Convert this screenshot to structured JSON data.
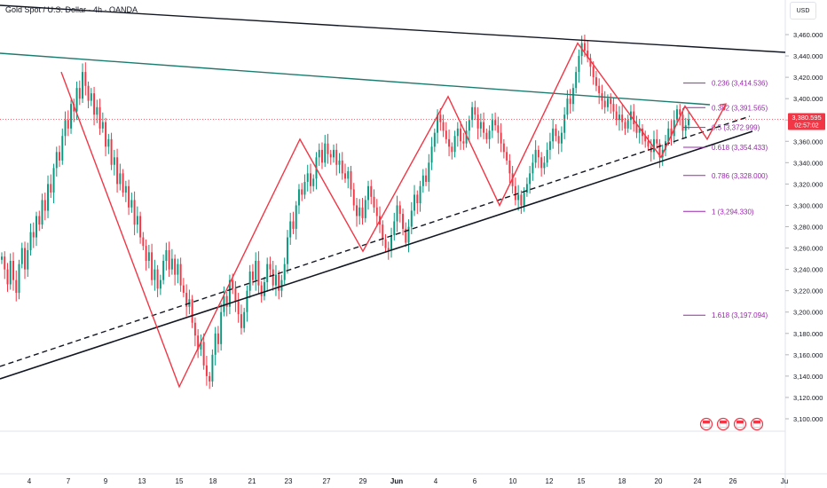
{
  "header": {
    "title": "Gold Spot / U.S. Dollar · 4h · OANDA",
    "currency": "USD"
  },
  "colors": {
    "bull": "#089981",
    "bear": "#f23645",
    "zigzag": "#f23645",
    "channel_top": "#131722",
    "teal_line": "#1b7b6e",
    "support": "#131722",
    "fib": "#9c27b0",
    "price_tag": "#f23645"
  },
  "price_badge": {
    "price": "3,380.595",
    "countdown": "02:57:02"
  },
  "chart_data": {
    "type": "candlestick",
    "symbol": "Gold Spot / U.S. Dollar",
    "timeframe": "4h",
    "y_axis": {
      "ticks": [
        "3,460.000",
        "3,440.000",
        "3,420.000",
        "3,400.000",
        "3,380.000",
        "3,360.000",
        "3,340.000",
        "3,320.000",
        "3,300.000",
        "3,280.000",
        "3,260.000",
        "3,240.000",
        "3,220.000",
        "3,200.000",
        "3,180.000",
        "3,160.000",
        "3,140.000",
        "3,120.000",
        "3,100.000"
      ],
      "range": [
        3085,
        3475
      ]
    },
    "x_axis": {
      "ticks": [
        "4",
        "7",
        "9",
        "13",
        "15",
        "18",
        "21",
        "23",
        "27",
        "29",
        "Jun",
        "4",
        "6",
        "10",
        "12",
        "15",
        "18",
        "20",
        "24",
        "26",
        "Ju"
      ]
    },
    "last_price": 3380.595,
    "fib_levels": [
      {
        "label": "0.236 (3,414.536)",
        "value": 3414.536
      },
      {
        "label": "0.382 (3,391.565)",
        "value": 3391.565
      },
      {
        "label": "0.5 (3,372.999)",
        "value": 3372.999
      },
      {
        "label": "0.618 (3,354.433)",
        "value": 3354.433
      },
      {
        "label": "0.786 (3,328.000)",
        "value": 3328.0
      },
      {
        "label": "1 (3,294.330)",
        "value": 3294.33
      },
      {
        "label": "1.618 (3,197.094)",
        "value": 3197.094
      }
    ],
    "zigzag_points": [
      {
        "x": "7",
        "y": 3425
      },
      {
        "x": "15",
        "y": 3130
      },
      {
        "x": "23",
        "y": 3362
      },
      {
        "x": "29",
        "y": 3257
      },
      {
        "x": "4",
        "y": 3402
      },
      {
        "x": "10",
        "y": 3300
      },
      {
        "x": "15",
        "y": 3452
      },
      {
        "x": "20",
        "y": 3345
      },
      {
        "x": "23",
        "y": 3393
      },
      {
        "x": "24",
        "y": 3362
      },
      {
        "x": "26",
        "y": 3395
      }
    ],
    "trendlines": [
      {
        "name": "channel top",
        "points": [
          [
            3495,
            "start"
          ],
          [
            3442,
            "end"
          ]
        ]
      },
      {
        "name": "mid line",
        "points": [
          [
            3430,
            "start"
          ],
          [
            3393,
            "end"
          ]
        ]
      }
    ],
    "candles": [
      3252,
      3240,
      3226,
      3248,
      3230,
      3218,
      3245,
      3260,
      3240,
      3258,
      3275,
      3270,
      3290,
      3282,
      3305,
      3295,
      3320,
      3312,
      3335,
      3350,
      3342,
      3365,
      3380,
      3372,
      3395,
      3388,
      3410,
      3400,
      3425,
      3412,
      3398,
      3405,
      3385,
      3392,
      3372,
      3378,
      3355,
      3362,
      3338,
      3345,
      3320,
      3330,
      3312,
      3318,
      3298,
      3305,
      3282,
      3290,
      3270,
      3262,
      3248,
      3256,
      3230,
      3240,
      3222,
      3230,
      3248,
      3258,
      3240,
      3250,
      3235,
      3245,
      3225,
      3218,
      3205,
      3212,
      3190,
      3178,
      3165,
      3172,
      3150,
      3140,
      3135,
      3160,
      3180,
      3170,
      3200,
      3215,
      3205,
      3230,
      3222,
      3210,
      3198,
      3185,
      3200,
      3220,
      3238,
      3230,
      3248,
      3225,
      3215,
      3228,
      3245,
      3240,
      3225,
      3235,
      3220,
      3230,
      3245,
      3270,
      3285,
      3278,
      3300,
      3315,
      3310,
      3322,
      3330,
      3318,
      3325,
      3345,
      3352,
      3340,
      3358,
      3348,
      3345,
      3352,
      3338,
      3342,
      3330,
      3325,
      3332,
      3315,
      3300,
      3290,
      3298,
      3288,
      3305,
      3318,
      3308,
      3298,
      3290,
      3282,
      3268,
      3260,
      3258,
      3272,
      3285,
      3300,
      3292,
      3278,
      3265,
      3280,
      3295,
      3310,
      3302,
      3318,
      3328,
      3322,
      3340,
      3355,
      3368,
      3385,
      3378,
      3370,
      3362,
      3355,
      3350,
      3365,
      3372,
      3360,
      3358,
      3370,
      3380,
      3392,
      3385,
      3372,
      3378,
      3368,
      3362,
      3370,
      3380,
      3375,
      3368,
      3358,
      3350,
      3342,
      3330,
      3318,
      3305,
      3310,
      3300,
      3312,
      3320,
      3330,
      3340,
      3352,
      3345,
      3335,
      3340,
      3352,
      3360,
      3372,
      3365,
      3358,
      3368,
      3385,
      3400,
      3395,
      3410,
      3425,
      3440,
      3452,
      3445,
      3438,
      3430,
      3420,
      3412,
      3405,
      3398,
      3392,
      3400,
      3395,
      3388,
      3380,
      3385,
      3378,
      3372,
      3380,
      3388,
      3376,
      3368,
      3372,
      3365,
      3360,
      3355,
      3350,
      3362,
      3358,
      3345,
      3352,
      3360,
      3372,
      3365,
      3380,
      3390,
      3385,
      3370,
      3375,
      3380.595
    ]
  },
  "badges": [
    "calendar",
    "calendar",
    "calendar",
    "calendar"
  ]
}
